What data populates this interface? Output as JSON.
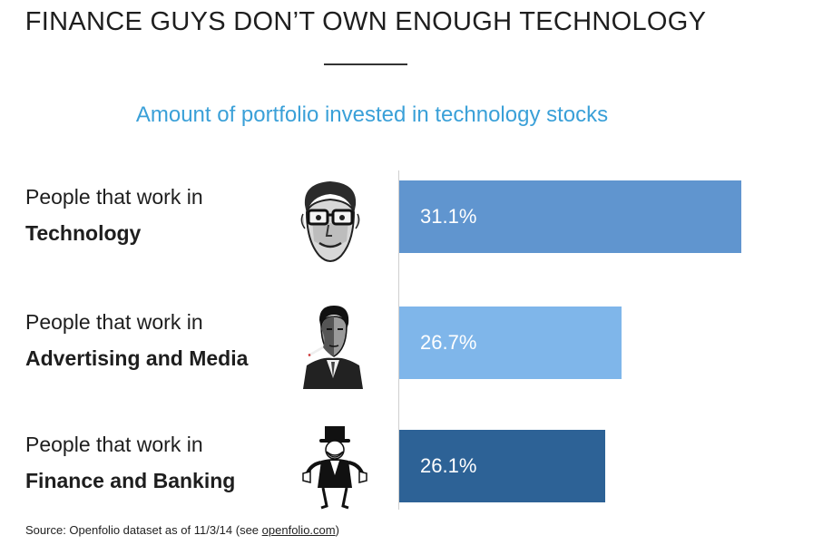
{
  "title": "FINANCE GUYS DON’T OWN ENOUGH TECHNOLOGY",
  "chart_data": {
    "type": "bar",
    "orientation": "horizontal",
    "title": "Amount of portfolio invested in technology stocks",
    "categories": [
      {
        "line1": "People that work in",
        "line2": "Technology"
      },
      {
        "line1": "People that work in",
        "line2": "Advertising and Media"
      },
      {
        "line1": "People that work in",
        "line2": "Finance and Banking"
      }
    ],
    "values": [
      31.1,
      26.7,
      26.1
    ],
    "value_labels": [
      "31.1%",
      "26.7%",
      "26.1%"
    ],
    "bar_colors": [
      "#6095cf",
      "#7fb6ea",
      "#2d6296"
    ],
    "legend": "none",
    "grid": false,
    "icons": [
      "bill-gates-portrait-icon",
      "don-draper-portrait-icon",
      "monopoly-man-icon"
    ]
  },
  "source": {
    "prefix": "Source: Openfolio dataset as of 11/3/14 (see ",
    "link": "openfolio.com",
    "suffix": ")"
  }
}
